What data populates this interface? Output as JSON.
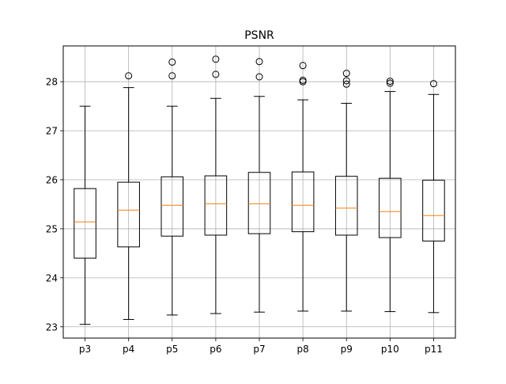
{
  "chart_data": {
    "type": "box",
    "title": "PSNR",
    "xlabel": "",
    "ylabel": "",
    "categories": [
      "p3",
      "p4",
      "p5",
      "p6",
      "p7",
      "p8",
      "p9",
      "p10",
      "p11"
    ],
    "boxes": [
      {
        "label": "p3",
        "whisker_low": 23.05,
        "q1": 24.4,
        "median": 25.14,
        "q3": 25.82,
        "whisker_high": 27.5,
        "outliers": []
      },
      {
        "label": "p4",
        "whisker_low": 23.15,
        "q1": 24.63,
        "median": 25.38,
        "q3": 25.95,
        "whisker_high": 27.88,
        "outliers": [
          28.12
        ]
      },
      {
        "label": "p5",
        "whisker_low": 23.24,
        "q1": 24.85,
        "median": 25.48,
        "q3": 26.06,
        "whisker_high": 27.5,
        "outliers": [
          28.12,
          28.4
        ]
      },
      {
        "label": "p6",
        "whisker_low": 23.27,
        "q1": 24.87,
        "median": 25.51,
        "q3": 26.08,
        "whisker_high": 27.66,
        "outliers": [
          28.15,
          28.46
        ]
      },
      {
        "label": "p7",
        "whisker_low": 23.3,
        "q1": 24.9,
        "median": 25.51,
        "q3": 26.15,
        "whisker_high": 27.7,
        "outliers": [
          28.1,
          28.41
        ]
      },
      {
        "label": "p8",
        "whisker_low": 23.32,
        "q1": 24.94,
        "median": 25.48,
        "q3": 26.16,
        "whisker_high": 27.63,
        "outliers": [
          28.0,
          28.03,
          28.33
        ]
      },
      {
        "label": "p9",
        "whisker_low": 23.32,
        "q1": 24.87,
        "median": 25.42,
        "q3": 26.07,
        "whisker_high": 27.56,
        "outliers": [
          27.95,
          28.02,
          28.17
        ]
      },
      {
        "label": "p10",
        "whisker_low": 23.31,
        "q1": 24.82,
        "median": 25.35,
        "q3": 26.03,
        "whisker_high": 27.8,
        "outliers": [
          27.97,
          28.01
        ]
      },
      {
        "label": "p11",
        "whisker_low": 23.29,
        "q1": 24.75,
        "median": 25.27,
        "q3": 25.99,
        "whisker_high": 27.74,
        "outliers": [
          27.96
        ]
      }
    ],
    "ylim": [
      22.77,
      28.73
    ],
    "yticks": [
      "23",
      "24",
      "25",
      "26",
      "27",
      "28"
    ],
    "grid": true,
    "legend": "none",
    "colors": {
      "box": "#000000",
      "median": "#ff7f0e",
      "grid": "#b0b0b0",
      "background": "#ffffff"
    }
  }
}
